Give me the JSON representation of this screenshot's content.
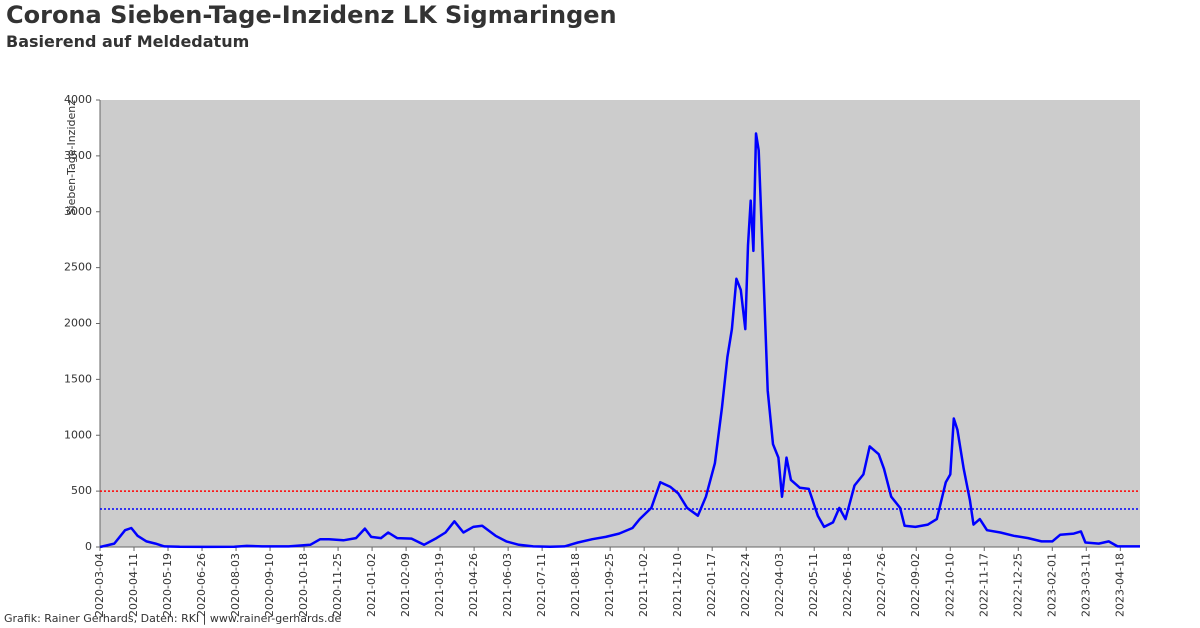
{
  "chart_data": {
    "type": "line",
    "title": "Corona Sieben-Tage-Inzidenz LK Sigmaringen",
    "subtitle": "Basierend auf Meldedatum",
    "ylabel": "Sieben-Tage-Inzidenz",
    "footer": "Grafik: Rainer Gerhards, Daten: RKI | www.rainer-gerhards.de",
    "grid": false,
    "xlim": [
      "2020-03-04",
      "2023-05-10"
    ],
    "xticks": [
      "2020-03-04",
      "2020-04-11",
      "2020-05-19",
      "2020-06-26",
      "2020-08-03",
      "2020-09-10",
      "2020-10-18",
      "2020-11-25",
      "2021-01-02",
      "2021-02-09",
      "2021-03-19",
      "2021-04-26",
      "2021-06-03",
      "2021-07-11",
      "2021-08-18",
      "2021-09-25",
      "2021-11-02",
      "2021-12-10",
      "2022-01-17",
      "2022-02-24",
      "2022-04-03",
      "2022-05-11",
      "2022-06-18",
      "2022-07-26",
      "2022-09-02",
      "2022-10-10",
      "2022-11-17",
      "2022-12-25",
      "2023-02-01",
      "2023-03-11",
      "2023-04-18"
    ],
    "ylim": [
      0,
      4000
    ],
    "yticks": [
      0,
      500,
      1000,
      1500,
      2000,
      2500,
      3000,
      3500,
      4000
    ],
    "reference_lines": [
      {
        "value": 500,
        "color": "#ff0000"
      },
      {
        "value": 340,
        "color": "#0000ff"
      }
    ],
    "x": [
      "2020-03-04",
      "2020-03-20",
      "2020-04-01",
      "2020-04-08",
      "2020-04-15",
      "2020-04-25",
      "2020-05-05",
      "2020-05-15",
      "2020-06-01",
      "2020-07-01",
      "2020-08-01",
      "2020-08-15",
      "2020-09-01",
      "2020-10-01",
      "2020-10-25",
      "2020-11-05",
      "2020-11-15",
      "2020-12-01",
      "2020-12-15",
      "2020-12-25",
      "2021-01-01",
      "2021-01-12",
      "2021-01-20",
      "2021-01-30",
      "2021-02-15",
      "2021-03-01",
      "2021-03-15",
      "2021-03-25",
      "2021-04-04",
      "2021-04-14",
      "2021-04-25",
      "2021-05-05",
      "2021-05-20",
      "2021-06-01",
      "2021-06-15",
      "2021-07-01",
      "2021-07-20",
      "2021-08-05",
      "2021-08-20",
      "2021-09-05",
      "2021-09-20",
      "2021-10-05",
      "2021-10-20",
      "2021-10-28",
      "2021-11-10",
      "2021-11-20",
      "2021-12-01",
      "2021-12-10",
      "2021-12-20",
      "2022-01-01",
      "2022-01-10",
      "2022-01-20",
      "2022-01-28",
      "2022-02-03",
      "2022-02-08",
      "2022-02-13",
      "2022-02-18",
      "2022-02-23",
      "2022-02-26",
      "2022-03-01",
      "2022-03-04",
      "2022-03-07",
      "2022-03-10",
      "2022-03-15",
      "2022-03-20",
      "2022-03-26",
      "2022-04-01",
      "2022-04-05",
      "2022-04-10",
      "2022-04-15",
      "2022-04-25",
      "2022-05-05",
      "2022-05-15",
      "2022-05-22",
      "2022-06-01",
      "2022-06-08",
      "2022-06-15",
      "2022-06-25",
      "2022-07-05",
      "2022-07-12",
      "2022-07-22",
      "2022-07-28",
      "2022-08-05",
      "2022-08-15",
      "2022-08-20",
      "2022-09-01",
      "2022-09-15",
      "2022-09-25",
      "2022-10-05",
      "2022-10-10",
      "2022-10-14",
      "2022-10-18",
      "2022-10-25",
      "2022-11-01",
      "2022-11-05",
      "2022-11-12",
      "2022-11-20",
      "2022-12-05",
      "2022-12-20",
      "2023-01-05",
      "2023-01-20",
      "2023-02-01",
      "2023-02-10",
      "2023-02-25",
      "2023-03-05",
      "2023-03-10",
      "2023-03-25",
      "2023-04-05",
      "2023-04-15",
      "2023-05-10"
    ],
    "series": [
      {
        "color": "#0000ff",
        "values": [
          0,
          30,
          150,
          170,
          100,
          50,
          30,
          5,
          2,
          1,
          2,
          10,
          5,
          5,
          20,
          70,
          70,
          60,
          80,
          165,
          90,
          80,
          130,
          80,
          75,
          20,
          80,
          130,
          230,
          130,
          180,
          190,
          100,
          50,
          20,
          5,
          3,
          5,
          40,
          70,
          90,
          120,
          170,
          250,
          350,
          580,
          540,
          480,
          350,
          280,
          450,
          750,
          1250,
          1700,
          1950,
          2400,
          2300,
          1950,
          2700,
          3100,
          2650,
          3700,
          3550,
          2500,
          1400,
          920,
          800,
          450,
          800,
          600,
          530,
          520,
          280,
          180,
          220,
          350,
          250,
          550,
          650,
          900,
          830,
          700,
          450,
          350,
          190,
          180,
          200,
          250,
          580,
          650,
          1150,
          1050,
          700,
          420,
          200,
          250,
          150,
          130,
          100,
          80,
          50,
          50,
          110,
          120,
          140,
          40,
          30,
          50,
          5,
          5
        ]
      }
    ]
  }
}
